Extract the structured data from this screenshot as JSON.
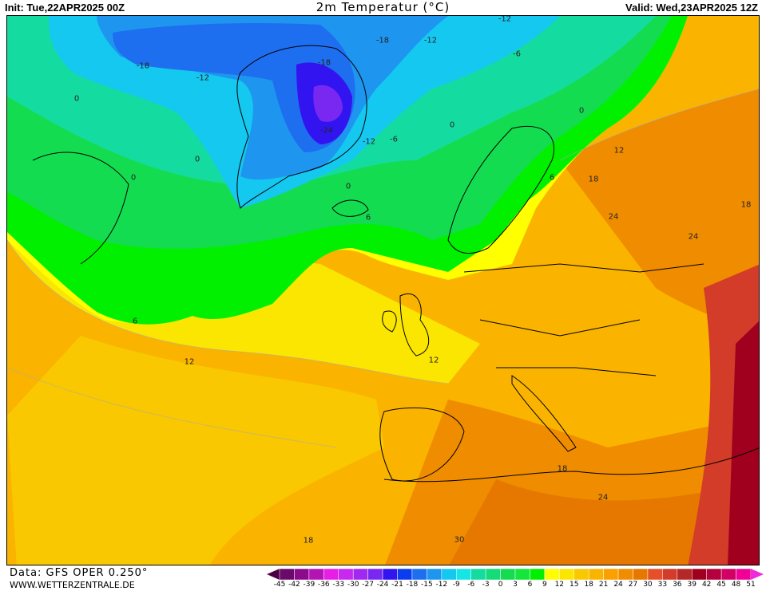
{
  "header": {
    "init": "Init: Tue,22APR2025 00Z",
    "title": "2m Temperatur (°C)",
    "valid": "Valid: Wed,23APR2025 12Z"
  },
  "footer": {
    "data_source": "Data: GFS OPER 0.250°",
    "website": "WWW.WETTERZENTRALE.DE"
  },
  "legend": {
    "ticks": [
      "-45",
      "-42",
      "-39",
      "-36",
      "-33",
      "-30",
      "-27",
      "-24",
      "-21",
      "-18",
      "-15",
      "-12",
      "-9",
      "-6",
      "-3",
      "0",
      "3",
      "6",
      "9",
      "12",
      "15",
      "18",
      "21",
      "24",
      "27",
      "30",
      "33",
      "36",
      "39",
      "42",
      "45",
      "48",
      "51"
    ],
    "below_color": "#4b0040",
    "above_color": "#f028dc",
    "colors": [
      "#6a0a6a",
      "#8c0a8c",
      "#b414b4",
      "#e61ee6",
      "#c828f0",
      "#a028f0",
      "#7828f0",
      "#3214f0",
      "#0a3cf0",
      "#1e6ef0",
      "#1e96f0",
      "#14c8f0",
      "#14e6e6",
      "#14dca0",
      "#14dc78",
      "#14dc50",
      "#14e63c",
      "#00f000",
      "#ffff00",
      "#fae600",
      "#fac800",
      "#fab400",
      "#faa000",
      "#f08c00",
      "#e67800",
      "#e65028",
      "#d23c28",
      "#b42828",
      "#a0001e",
      "#b4003c",
      "#d20064",
      "#f00096"
    ]
  },
  "map": {
    "labels": [
      "-18",
      "-12",
      "-18",
      "-12",
      "-12",
      "-6",
      "-18",
      "-24",
      "-12",
      "-6",
      "0",
      "0",
      "0",
      "0",
      "0",
      "6",
      "6",
      "12",
      "18",
      "24",
      "24",
      "18",
      "6",
      "12",
      "12",
      "18",
      "24",
      "30",
      "18",
      "0"
    ]
  }
}
